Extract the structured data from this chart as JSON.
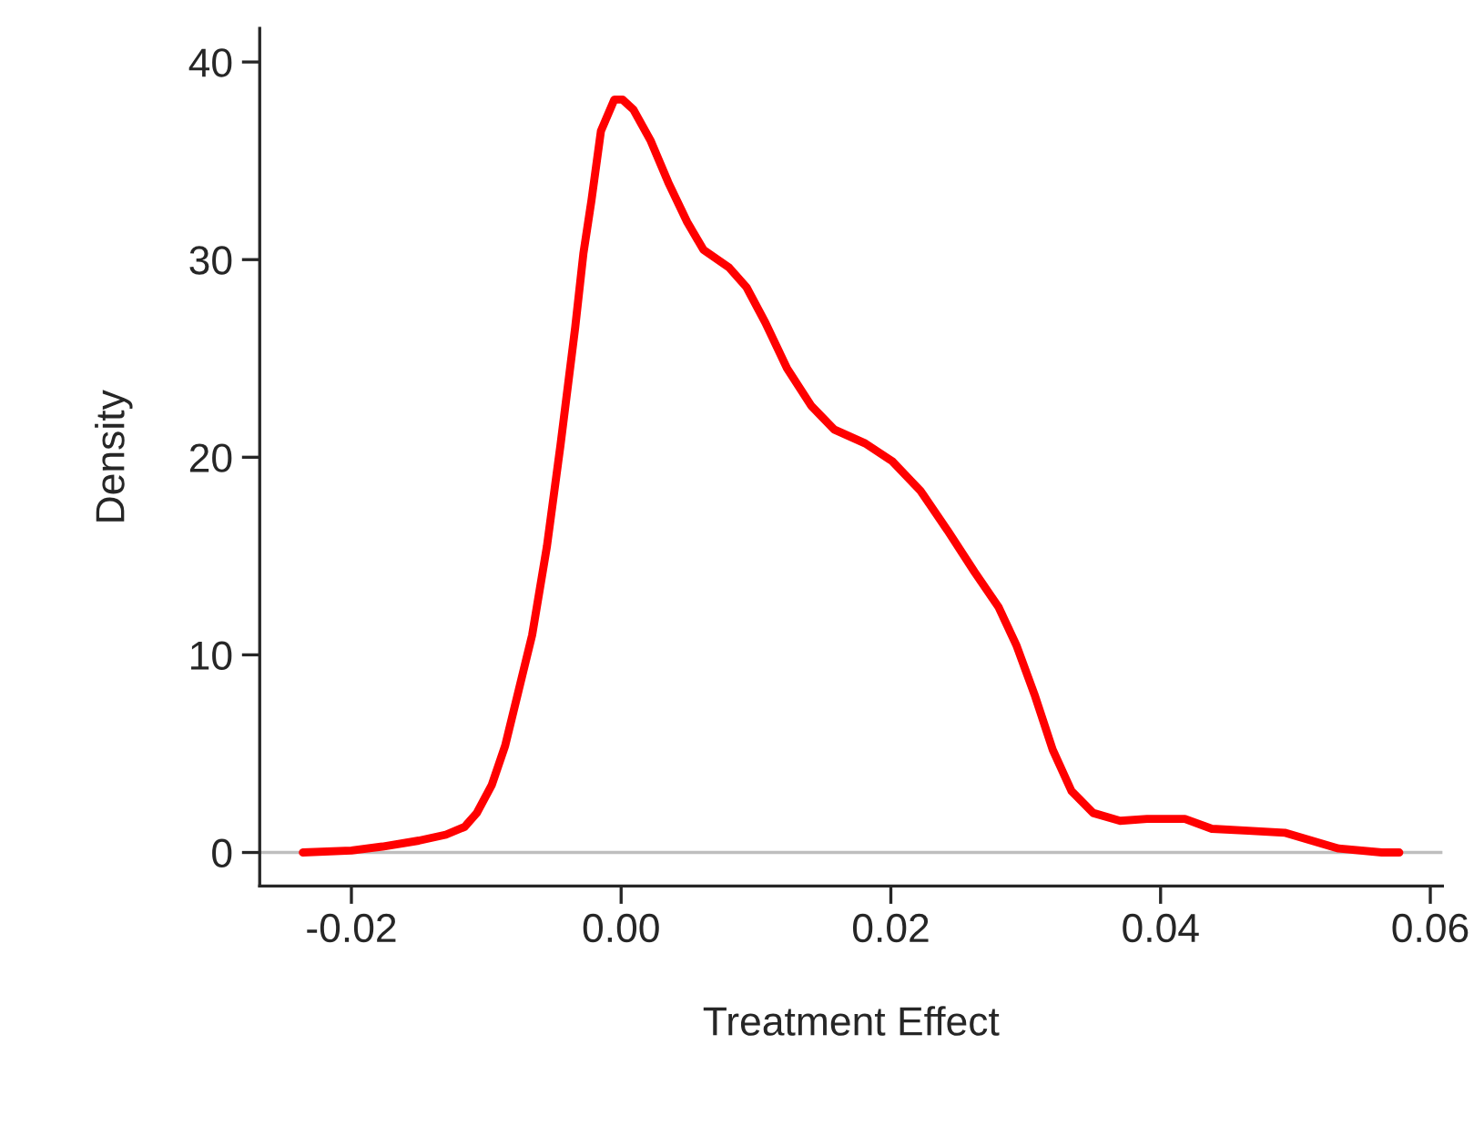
{
  "chart_data": {
    "type": "line",
    "xlabel": "Treatment Effect",
    "ylabel": "Density",
    "xlim": [
      -0.0268,
      0.0609
    ],
    "ylim": [
      -1.7,
      41.7
    ],
    "xticks": [
      {
        "value": -0.02,
        "label": "-0.02"
      },
      {
        "value": 0.0,
        "label": "0.00"
      },
      {
        "value": 0.02,
        "label": "0.02"
      },
      {
        "value": 0.04,
        "label": "0.04"
      },
      {
        "value": 0.06,
        "label": "0.06"
      }
    ],
    "yticks": [
      0,
      10,
      20,
      30,
      40
    ],
    "grid": false,
    "legend": false,
    "marker": "none",
    "line_style": "solid",
    "ref_lines": [
      {
        "axis": "y",
        "value": 0,
        "label": null,
        "color": "#bebebe",
        "line_style": "solid"
      }
    ],
    "series": [
      {
        "color": "#ff0000",
        "x": [
          -0.0236,
          -0.02,
          -0.0177,
          -0.015,
          -0.013,
          -0.0116,
          -0.0107,
          -0.0096,
          -0.0086,
          -0.0076,
          -0.0066,
          -0.0055,
          -0.0045,
          -0.0034,
          -0.0028,
          -0.0022,
          -0.0015,
          -0.0005,
          0.0001,
          0.0009,
          0.0022,
          0.0035,
          0.0049,
          0.0061,
          0.008,
          0.0093,
          0.0107,
          0.0123,
          0.0141,
          0.0158,
          0.0181,
          0.0201,
          0.0222,
          0.0242,
          0.0262,
          0.028,
          0.0293,
          0.0307,
          0.032,
          0.0334,
          0.035,
          0.037,
          0.039,
          0.0418,
          0.0438,
          0.0465,
          0.0492,
          0.0512,
          0.0532,
          0.0564,
          0.0577
        ],
        "values": [
          0,
          0.1,
          0.3,
          0.6,
          0.9,
          1.3,
          2.0,
          3.4,
          5.4,
          8.2,
          11.0,
          15.5,
          20.6,
          26.6,
          30.3,
          33.0,
          36.5,
          38.1,
          38.1,
          37.6,
          36.0,
          33.9,
          31.9,
          30.5,
          29.6,
          28.6,
          26.8,
          24.5,
          22.6,
          21.4,
          20.7,
          19.8,
          18.3,
          16.3,
          14.2,
          12.4,
          10.5,
          7.9,
          5.2,
          3.1,
          2.0,
          1.6,
          1.7,
          1.7,
          1.2,
          1.1,
          1.0,
          0.6,
          0.2,
          0,
          0
        ]
      }
    ]
  }
}
